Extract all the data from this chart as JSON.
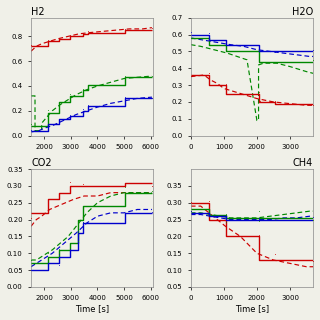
{
  "colors": [
    "#cc0000",
    "#008800",
    "#0000cc"
  ],
  "bg_color": "#f0f0e8",
  "H2": {
    "xlim": [
      1500,
      6100
    ],
    "ylim": [
      0.0,
      0.95
    ],
    "yticks": [
      0.0,
      0.2,
      0.4,
      0.6,
      0.8
    ],
    "xlabel": "",
    "title": "H2",
    "title_loc": "left",
    "red_solid": [
      [
        1500,
        0.72
      ],
      [
        2150,
        0.72
      ],
      [
        2150,
        0.76
      ],
      [
        2550,
        0.76
      ],
      [
        2550,
        0.78
      ],
      [
        2950,
        0.78
      ],
      [
        2950,
        0.8
      ],
      [
        3450,
        0.8
      ],
      [
        3450,
        0.82
      ],
      [
        3650,
        0.82
      ],
      [
        3650,
        0.83
      ],
      [
        5050,
        0.83
      ],
      [
        5050,
        0.85
      ],
      [
        6050,
        0.85
      ]
    ],
    "red_dashed": [
      [
        1500,
        0.68
      ],
      [
        1700,
        0.72
      ],
      [
        1900,
        0.74
      ],
      [
        2200,
        0.76
      ],
      [
        2500,
        0.78
      ],
      [
        2900,
        0.8
      ],
      [
        3300,
        0.82
      ],
      [
        3700,
        0.83
      ],
      [
        4200,
        0.84
      ],
      [
        4700,
        0.85
      ],
      [
        5200,
        0.86
      ],
      [
        5700,
        0.86
      ],
      [
        6050,
        0.87
      ]
    ],
    "green_solid": [
      [
        1500,
        0.08
      ],
      [
        2150,
        0.08
      ],
      [
        2150,
        0.18
      ],
      [
        2550,
        0.18
      ],
      [
        2550,
        0.27
      ],
      [
        2950,
        0.27
      ],
      [
        2950,
        0.32
      ],
      [
        3450,
        0.32
      ],
      [
        3450,
        0.37
      ],
      [
        3650,
        0.37
      ],
      [
        3650,
        0.41
      ],
      [
        5050,
        0.41
      ],
      [
        5050,
        0.47
      ],
      [
        6050,
        0.47
      ]
    ],
    "green_dashed": [
      [
        1500,
        0.32
      ],
      [
        1650,
        0.32
      ],
      [
        1650,
        0.04
      ],
      [
        1900,
        0.04
      ],
      [
        1900,
        0.1
      ],
      [
        2100,
        0.15
      ],
      [
        2300,
        0.2
      ],
      [
        2600,
        0.25
      ],
      [
        2900,
        0.29
      ],
      [
        3200,
        0.33
      ],
      [
        3600,
        0.37
      ],
      [
        4000,
        0.4
      ],
      [
        4500,
        0.43
      ],
      [
        5000,
        0.46
      ],
      [
        5500,
        0.47
      ],
      [
        6050,
        0.48
      ]
    ],
    "blue_solid": [
      [
        1500,
        0.04
      ],
      [
        2150,
        0.04
      ],
      [
        2150,
        0.09
      ],
      [
        2550,
        0.09
      ],
      [
        2550,
        0.13
      ],
      [
        2950,
        0.13
      ],
      [
        2950,
        0.16
      ],
      [
        3450,
        0.16
      ],
      [
        3450,
        0.2
      ],
      [
        3650,
        0.2
      ],
      [
        3650,
        0.24
      ],
      [
        5050,
        0.24
      ],
      [
        5050,
        0.3
      ],
      [
        6050,
        0.3
      ]
    ],
    "blue_dashed": [
      [
        1500,
        0.03
      ],
      [
        1800,
        0.04
      ],
      [
        2000,
        0.06
      ],
      [
        2300,
        0.08
      ],
      [
        2600,
        0.11
      ],
      [
        2900,
        0.14
      ],
      [
        3200,
        0.17
      ],
      [
        3600,
        0.2
      ],
      [
        4000,
        0.23
      ],
      [
        4500,
        0.26
      ],
      [
        5000,
        0.28
      ],
      [
        5500,
        0.3
      ],
      [
        6050,
        0.31
      ]
    ]
  },
  "H2O": {
    "xlim": [
      0,
      3700
    ],
    "ylim": [
      0.0,
      0.7
    ],
    "yticks": [
      0.0,
      0.1,
      0.2,
      0.3,
      0.4,
      0.5,
      0.6,
      0.7
    ],
    "xlabel": "",
    "title": "H2O",
    "title_loc": "right",
    "red_solid": [
      [
        0,
        0.36
      ],
      [
        550,
        0.36
      ],
      [
        550,
        0.3
      ],
      [
        1050,
        0.3
      ],
      [
        1050,
        0.25
      ],
      [
        2050,
        0.25
      ],
      [
        2050,
        0.2
      ],
      [
        2100,
        0.2
      ],
      [
        2550,
        0.2
      ],
      [
        2550,
        0.19
      ],
      [
        3700,
        0.19
      ]
    ],
    "red_dashed": [
      [
        0,
        0.35
      ],
      [
        400,
        0.36
      ],
      [
        600,
        0.33
      ],
      [
        800,
        0.31
      ],
      [
        1000,
        0.28
      ],
      [
        1500,
        0.25
      ],
      [
        2000,
        0.22
      ],
      [
        2500,
        0.2
      ],
      [
        3000,
        0.19
      ],
      [
        3500,
        0.18
      ],
      [
        3700,
        0.18
      ]
    ],
    "green_solid": [
      [
        0,
        0.58
      ],
      [
        550,
        0.58
      ],
      [
        550,
        0.54
      ],
      [
        1050,
        0.54
      ],
      [
        1050,
        0.5
      ],
      [
        2050,
        0.5
      ],
      [
        2050,
        0.44
      ],
      [
        2550,
        0.44
      ],
      [
        3700,
        0.44
      ]
    ],
    "green_dashed": [
      [
        0,
        0.54
      ],
      [
        300,
        0.53
      ],
      [
        500,
        0.52
      ],
      [
        700,
        0.51
      ],
      [
        900,
        0.5
      ],
      [
        1100,
        0.49
      ],
      [
        1400,
        0.47
      ],
      [
        1700,
        0.45
      ],
      [
        2000,
        0.09
      ],
      [
        2050,
        0.09
      ],
      [
        2050,
        0.42
      ],
      [
        2200,
        0.43
      ],
      [
        2600,
        0.43
      ],
      [
        3000,
        0.41
      ],
      [
        3500,
        0.38
      ],
      [
        3700,
        0.37
      ]
    ],
    "blue_solid": [
      [
        0,
        0.6
      ],
      [
        550,
        0.6
      ],
      [
        550,
        0.57
      ],
      [
        1050,
        0.57
      ],
      [
        1050,
        0.54
      ],
      [
        2050,
        0.54
      ],
      [
        2050,
        0.5
      ],
      [
        2550,
        0.5
      ],
      [
        3700,
        0.5
      ]
    ],
    "blue_dashed": [
      [
        0,
        0.58
      ],
      [
        300,
        0.57
      ],
      [
        600,
        0.56
      ],
      [
        900,
        0.55
      ],
      [
        1200,
        0.54
      ],
      [
        1600,
        0.53
      ],
      [
        2000,
        0.51
      ],
      [
        2400,
        0.5
      ],
      [
        2800,
        0.49
      ],
      [
        3200,
        0.48
      ],
      [
        3600,
        0.47
      ],
      [
        3700,
        0.47
      ]
    ]
  },
  "CO2": {
    "xlim": [
      1500,
      6100
    ],
    "ylim": [
      0.0,
      0.35
    ],
    "yticks": [
      0.0,
      0.05,
      0.1,
      0.15,
      0.2,
      0.25,
      0.3,
      0.35
    ],
    "xlabel": "Time [s]",
    "title": "CO2",
    "title_loc": "left",
    "red_solid": [
      [
        1500,
        0.22
      ],
      [
        2150,
        0.22
      ],
      [
        2150,
        0.26
      ],
      [
        2550,
        0.26
      ],
      [
        2550,
        0.28
      ],
      [
        2950,
        0.28
      ],
      [
        2950,
        0.3
      ],
      [
        3450,
        0.3
      ],
      [
        5050,
        0.3
      ],
      [
        5050,
        0.31
      ],
      [
        6050,
        0.31
      ]
    ],
    "red_dashed": [
      [
        1500,
        0.18
      ],
      [
        1700,
        0.2
      ],
      [
        1900,
        0.21
      ],
      [
        2200,
        0.23
      ],
      [
        2500,
        0.24
      ],
      [
        2800,
        0.25
      ],
      [
        3100,
        0.26
      ],
      [
        3500,
        0.27
      ],
      [
        4000,
        0.27
      ],
      [
        4500,
        0.28
      ],
      [
        5000,
        0.28
      ],
      [
        5500,
        0.28
      ],
      [
        6050,
        0.28
      ]
    ],
    "green_solid": [
      [
        1500,
        0.07
      ],
      [
        2150,
        0.07
      ],
      [
        2150,
        0.09
      ],
      [
        2550,
        0.09
      ],
      [
        2550,
        0.11
      ],
      [
        2950,
        0.11
      ],
      [
        2950,
        0.13
      ],
      [
        3250,
        0.13
      ],
      [
        3250,
        0.2
      ],
      [
        3450,
        0.2
      ],
      [
        3450,
        0.24
      ],
      [
        5050,
        0.24
      ],
      [
        5050,
        0.28
      ],
      [
        6050,
        0.28
      ]
    ],
    "green_dashed": [
      [
        1500,
        0.08
      ],
      [
        1700,
        0.08
      ],
      [
        1900,
        0.09
      ],
      [
        2100,
        0.1
      ],
      [
        2300,
        0.11
      ],
      [
        2600,
        0.13
      ],
      [
        2900,
        0.15
      ],
      [
        3200,
        0.18
      ],
      [
        3600,
        0.22
      ],
      [
        4000,
        0.25
      ],
      [
        4500,
        0.27
      ],
      [
        5000,
        0.28
      ],
      [
        5500,
        0.28
      ],
      [
        6050,
        0.28
      ]
    ],
    "blue_solid": [
      [
        1500,
        0.05
      ],
      [
        2150,
        0.05
      ],
      [
        2150,
        0.07
      ],
      [
        2550,
        0.07
      ],
      [
        2550,
        0.09
      ],
      [
        2950,
        0.09
      ],
      [
        2950,
        0.11
      ],
      [
        3250,
        0.11
      ],
      [
        3250,
        0.16
      ],
      [
        3450,
        0.16
      ],
      [
        3450,
        0.19
      ],
      [
        5050,
        0.19
      ],
      [
        5050,
        0.22
      ],
      [
        6050,
        0.22
      ]
    ],
    "blue_dashed": [
      [
        1500,
        0.06
      ],
      [
        1700,
        0.07
      ],
      [
        1900,
        0.08
      ],
      [
        2100,
        0.09
      ],
      [
        2300,
        0.1
      ],
      [
        2600,
        0.12
      ],
      [
        2900,
        0.14
      ],
      [
        3200,
        0.16
      ],
      [
        3600,
        0.19
      ],
      [
        4000,
        0.21
      ],
      [
        4500,
        0.22
      ],
      [
        5000,
        0.22
      ],
      [
        5500,
        0.23
      ],
      [
        6050,
        0.23
      ]
    ]
  },
  "CH4": {
    "xlim": [
      0,
      3700
    ],
    "ylim": [
      0.05,
      0.4
    ],
    "yticks": [
      0.05,
      0.1,
      0.15,
      0.2,
      0.25,
      0.3,
      0.35
    ],
    "xlabel": "Time [s]",
    "title": "CH4",
    "title_loc": "right",
    "red_solid": [
      [
        0,
        0.3
      ],
      [
        550,
        0.3
      ],
      [
        550,
        0.25
      ],
      [
        1050,
        0.25
      ],
      [
        1050,
        0.2
      ],
      [
        2050,
        0.2
      ],
      [
        2050,
        0.13
      ],
      [
        2550,
        0.13
      ],
      [
        3700,
        0.13
      ]
    ],
    "red_dashed": [
      [
        0,
        0.29
      ],
      [
        300,
        0.29
      ],
      [
        550,
        0.27
      ],
      [
        800,
        0.25
      ],
      [
        1050,
        0.23
      ],
      [
        1500,
        0.2
      ],
      [
        2000,
        0.15
      ],
      [
        2500,
        0.13
      ],
      [
        3000,
        0.12
      ],
      [
        3500,
        0.11
      ],
      [
        3700,
        0.11
      ]
    ],
    "green_solid": [
      [
        0,
        0.28
      ],
      [
        550,
        0.28
      ],
      [
        550,
        0.265
      ],
      [
        1050,
        0.265
      ],
      [
        1050,
        0.255
      ],
      [
        2050,
        0.255
      ],
      [
        2050,
        0.255
      ],
      [
        2550,
        0.255
      ],
      [
        3700,
        0.255
      ]
    ],
    "green_dashed": [
      [
        0,
        0.27
      ],
      [
        300,
        0.27
      ],
      [
        600,
        0.265
      ],
      [
        900,
        0.26
      ],
      [
        1200,
        0.255
      ],
      [
        1600,
        0.255
      ],
      [
        2000,
        0.255
      ],
      [
        2400,
        0.26
      ],
      [
        2800,
        0.265
      ],
      [
        3200,
        0.27
      ],
      [
        3600,
        0.275
      ],
      [
        3700,
        0.275
      ]
    ],
    "blue_solid": [
      [
        0,
        0.27
      ],
      [
        550,
        0.27
      ],
      [
        550,
        0.26
      ],
      [
        1050,
        0.26
      ],
      [
        1050,
        0.25
      ],
      [
        2050,
        0.25
      ],
      [
        2050,
        0.25
      ],
      [
        2550,
        0.25
      ],
      [
        3700,
        0.25
      ]
    ],
    "blue_dashed": [
      [
        0,
        0.265
      ],
      [
        300,
        0.265
      ],
      [
        600,
        0.26
      ],
      [
        900,
        0.255
      ],
      [
        1200,
        0.25
      ],
      [
        1600,
        0.25
      ],
      [
        2000,
        0.25
      ],
      [
        2400,
        0.25
      ],
      [
        2800,
        0.255
      ],
      [
        3200,
        0.255
      ],
      [
        3600,
        0.26
      ],
      [
        3700,
        0.26
      ]
    ]
  }
}
